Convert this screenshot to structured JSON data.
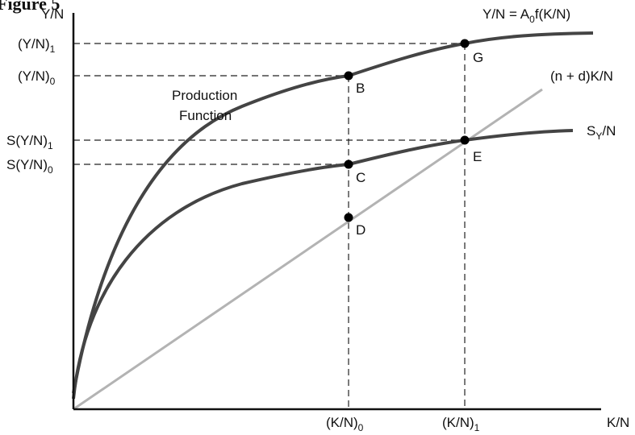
{
  "figure": {
    "title": "Figure 5"
  },
  "axes": {
    "y_label": "Y/N",
    "x_label": "K/N"
  },
  "y_ticks": [
    {
      "main": "(Y/N)",
      "sub": "1"
    },
    {
      "main": "(Y/N)",
      "sub": "0"
    },
    {
      "main": "S(Y/N)",
      "sub": "1"
    },
    {
      "main": "S(Y/N)",
      "sub": "0"
    }
  ],
  "x_ticks": [
    {
      "main": "(K/N)",
      "sub": "0"
    },
    {
      "main": "(K/N)",
      "sub": "1"
    }
  ],
  "curves": {
    "production": {
      "pre": "Y/N = A",
      "sub": "0",
      "post": "f(K/N)",
      "colour": "#444444"
    },
    "production_caption": {
      "line1": "Production",
      "line2": "Function"
    },
    "saving": {
      "pre": "S",
      "sub": "Y",
      "post": "/N",
      "colour": "#444444"
    },
    "investment": {
      "label": "(n + d)K/N",
      "colour": "#b3b3b3"
    }
  },
  "points": {
    "b": "B",
    "c": "C",
    "d": "D",
    "e": "E",
    "g": "G"
  }
}
